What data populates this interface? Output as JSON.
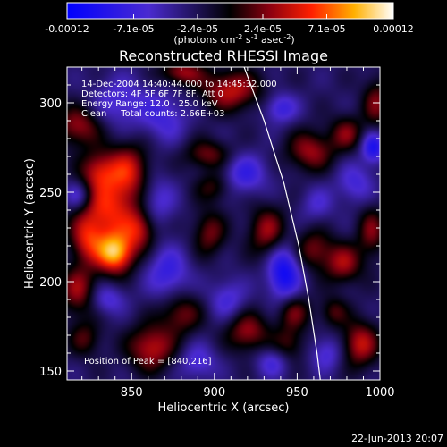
{
  "chart_data": {
    "type": "heatmap",
    "title": "Reconstructed RHESSI Image",
    "xlabel": "Heliocentric X (arcsec)",
    "ylabel": "Heliocentric Y (arcsec)",
    "xlim": [
      811,
      1000
    ],
    "ylim": [
      145,
      320
    ],
    "x_ticks": [
      850,
      900,
      950,
      1000
    ],
    "y_ticks": [
      150,
      200,
      250,
      300
    ],
    "colorbar": {
      "range": [
        -0.00012,
        0.00012
      ],
      "tick_values": [
        -0.00012,
        -7.1e-05,
        -2.4e-05,
        2.4e-05,
        7.1e-05,
        0.00012
      ],
      "tick_labels": [
        "-0.00012",
        "-7.1e-05",
        "-2.4e-05",
        "2.4e-05",
        "7.1e-05",
        "0.00012"
      ],
      "unit_base": "(photons cm",
      "unit_exp1": "-2",
      "unit_mid": " s",
      "unit_exp2": "-1",
      "unit_end": " asec",
      "unit_exp3": "-2",
      "unit_close": ")"
    },
    "annotations": [
      "14-Dec-2004 14:40:44.000 to 14:45:32.000",
      "Detectors: 4F 5F 6F 7F 8F, Att 0",
      "Energy Range: 12.0 - 25.0 keV",
      "Clean     Total counts: 2.66E+03"
    ],
    "peak_label": "Position of Peak = [840,216]",
    "peak": [
      840,
      216
    ],
    "limb": [
      [
        918,
        320
      ],
      [
        930,
        290
      ],
      [
        942,
        255
      ],
      [
        951,
        220
      ],
      [
        957,
        190
      ],
      [
        962,
        160
      ],
      [
        964,
        145
      ]
    ],
    "sources": [
      {
        "x": 840,
        "y": 216,
        "v": 0.00012,
        "sx": 8,
        "sy": 8
      },
      {
        "x": 835,
        "y": 240,
        "v": 8e-05,
        "sx": 13,
        "sy": 12
      },
      {
        "x": 848,
        "y": 262,
        "v": 7e-05,
        "sx": 9,
        "sy": 11
      },
      {
        "x": 830,
        "y": 262,
        "v": 6e-05,
        "sx": 8,
        "sy": 8
      },
      {
        "x": 855,
        "y": 229,
        "v": 6e-05,
        "sx": 7,
        "sy": 8
      },
      {
        "x": 823,
        "y": 223,
        "v": 6e-05,
        "sx": 7,
        "sy": 9
      },
      {
        "x": 818,
        "y": 195,
        "v": 6e-05,
        "sx": 8,
        "sy": 10
      },
      {
        "x": 818,
        "y": 287,
        "v": 6e-05,
        "sx": 10,
        "sy": 8
      },
      {
        "x": 862,
        "y": 163,
        "v": 7e-05,
        "sx": 10,
        "sy": 9
      },
      {
        "x": 880,
        "y": 182,
        "v": 5e-05,
        "sx": 9,
        "sy": 8
      },
      {
        "x": 897,
        "y": 227,
        "v": 5e-05,
        "sx": 7,
        "sy": 9
      },
      {
        "x": 900,
        "y": 253,
        "v": 4e-05,
        "sx": 8,
        "sy": 6
      },
      {
        "x": 896,
        "y": 271,
        "v": 5e-05,
        "sx": 10,
        "sy": 6
      },
      {
        "x": 910,
        "y": 307,
        "v": 7e-05,
        "sx": 13,
        "sy": 8
      },
      {
        "x": 880,
        "y": 317,
        "v": 6e-05,
        "sx": 9,
        "sy": 5
      },
      {
        "x": 958,
        "y": 273,
        "v": 6e-05,
        "sx": 10,
        "sy": 8
      },
      {
        "x": 980,
        "y": 283,
        "v": 5e-05,
        "sx": 7,
        "sy": 7
      },
      {
        "x": 998,
        "y": 300,
        "v": 5e-05,
        "sx": 6,
        "sy": 10
      },
      {
        "x": 932,
        "y": 228,
        "v": 6e-05,
        "sx": 8,
        "sy": 10
      },
      {
        "x": 960,
        "y": 218,
        "v": 5e-05,
        "sx": 8,
        "sy": 8
      },
      {
        "x": 978,
        "y": 210,
        "v": 6e-05,
        "sx": 8,
        "sy": 8
      },
      {
        "x": 995,
        "y": 228,
        "v": 5e-05,
        "sx": 6,
        "sy": 10
      },
      {
        "x": 920,
        "y": 172,
        "v": 6e-05,
        "sx": 9,
        "sy": 8
      },
      {
        "x": 945,
        "y": 165,
        "v": 4e-05,
        "sx": 7,
        "sy": 7
      },
      {
        "x": 948,
        "y": 183,
        "v": 5e-05,
        "sx": 7,
        "sy": 7
      },
      {
        "x": 972,
        "y": 183,
        "v": 4e-05,
        "sx": 6,
        "sy": 6
      },
      {
        "x": 988,
        "y": 165,
        "v": 7e-05,
        "sx": 8,
        "sy": 9
      },
      {
        "x": 822,
        "y": 168,
        "v": 4e-05,
        "sx": 7,
        "sy": 7
      },
      {
        "x": 843,
        "y": 300,
        "v": -4e-05,
        "sx": 12,
        "sy": 10
      },
      {
        "x": 870,
        "y": 292,
        "v": -4e-05,
        "sx": 10,
        "sy": 10
      },
      {
        "x": 818,
        "y": 248,
        "v": -5e-05,
        "sx": 6,
        "sy": 6
      },
      {
        "x": 865,
        "y": 245,
        "v": -4e-05,
        "sx": 8,
        "sy": 10
      },
      {
        "x": 872,
        "y": 205,
        "v": -5e-05,
        "sx": 9,
        "sy": 10
      },
      {
        "x": 942,
        "y": 205,
        "v": -8e-05,
        "sx": 7,
        "sy": 11
      },
      {
        "x": 918,
        "y": 260,
        "v": -5e-05,
        "sx": 10,
        "sy": 8
      },
      {
        "x": 940,
        "y": 297,
        "v": -5e-05,
        "sx": 7,
        "sy": 6
      },
      {
        "x": 985,
        "y": 255,
        "v": -4e-05,
        "sx": 8,
        "sy": 8
      },
      {
        "x": 996,
        "y": 275,
        "v": -7e-05,
        "sx": 5,
        "sy": 6
      },
      {
        "x": 908,
        "y": 190,
        "v": -4e-05,
        "sx": 8,
        "sy": 8
      },
      {
        "x": 890,
        "y": 155,
        "v": -4e-05,
        "sx": 8,
        "sy": 7
      },
      {
        "x": 935,
        "y": 155,
        "v": -4e-05,
        "sx": 7,
        "sy": 6
      },
      {
        "x": 968,
        "y": 160,
        "v": -4e-05,
        "sx": 7,
        "sy": 7
      },
      {
        "x": 835,
        "y": 190,
        "v": -4e-05,
        "sx": 8,
        "sy": 6
      },
      {
        "x": 962,
        "y": 243,
        "v": -3e-05,
        "sx": 7,
        "sy": 7
      }
    ]
  },
  "footer": {
    "timestamp": "22-Jun-2013 20:07"
  }
}
